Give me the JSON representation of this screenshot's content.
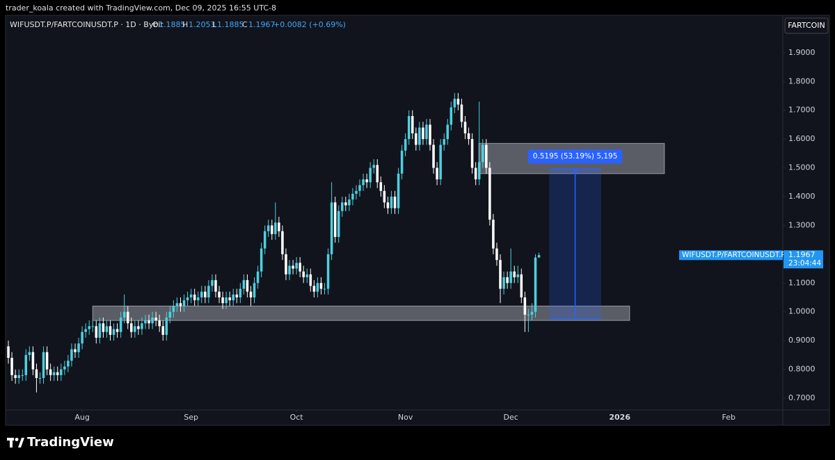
{
  "header": {
    "caption": "trader_koala created with TradingView.com, Dec 09, 2025 16:55 UTC-8"
  },
  "legend": {
    "symbol": "WIFUSDT.P/FARTCOINUSDT.P · 1D · Bybit",
    "o_label": "O",
    "h_label": "H",
    "l_label": "L",
    "c_label": "C",
    "change": "+0.0082 (+0.69%)"
  },
  "currency_button": "FARTCOIN",
  "price_label": {
    "symbol": "WIFUSDT.P/FARTCOINUSDT.P",
    "countdown": "23:04:44"
  },
  "brand": "TradingView",
  "chart_data": {
    "type": "candlestick",
    "up_color": "#4dd0e1",
    "down_color": "#ffffff",
    "open": [
      0.88,
      0.84,
      0.78,
      0.77,
      0.78,
      0.78,
      0.85,
      0.86,
      0.8,
      0.77,
      0.77,
      0.86,
      0.8,
      0.78,
      0.79,
      0.78,
      0.8,
      0.81,
      0.83,
      0.87,
      0.86,
      0.89,
      0.93,
      0.94,
      0.95,
      0.95,
      0.91,
      0.96,
      0.93,
      0.95,
      0.92,
      0.94,
      0.93,
      0.98,
      1.0,
      0.96,
      0.93,
      0.95,
      0.94,
      0.96,
      0.97,
      0.96,
      0.98,
      0.97,
      0.95,
      0.92,
      0.98,
      1.0,
      1.02,
      1.03,
      1.02,
      1.04,
      1.05,
      1.06,
      1.04,
      1.05,
      1.07,
      1.05,
      1.09,
      1.11,
      1.07,
      1.05,
      1.03,
      1.05,
      1.04,
      1.06,
      1.05,
      1.08,
      1.11,
      1.07,
      1.05,
      1.1,
      1.14,
      1.22,
      1.28,
      1.3,
      1.27,
      1.31,
      1.28,
      1.2,
      1.13,
      1.16,
      1.15,
      1.17,
      1.14,
      1.12,
      1.13,
      1.09,
      1.07,
      1.1,
      1.08,
      1.08,
      1.2,
      1.38,
      1.26,
      1.35,
      1.38,
      1.37,
      1.39,
      1.41,
      1.42,
      1.44,
      1.46,
      1.45,
      1.5,
      1.51,
      1.45,
      1.42,
      1.38,
      1.36,
      1.4,
      1.36,
      1.48,
      1.56,
      1.6,
      1.68,
      1.62,
      1.58,
      1.64,
      1.6,
      1.65,
      1.58,
      1.5,
      1.46,
      1.58,
      1.6,
      1.65,
      1.71,
      1.74,
      1.72,
      1.66,
      1.62,
      1.6,
      1.5,
      1.46,
      1.52,
      1.58,
      1.5,
      1.32,
      1.22,
      1.18,
      1.08,
      1.12,
      1.1,
      1.14,
      1.12,
      1.13,
      1.05,
      0.99,
      0.99,
      1.0,
      1.1885
    ],
    "high": [
      0.9,
      0.86,
      0.8,
      0.8,
      0.8,
      0.87,
      0.88,
      0.88,
      0.82,
      0.79,
      0.88,
      0.88,
      0.82,
      0.81,
      0.81,
      0.82,
      0.83,
      0.85,
      0.89,
      0.89,
      0.91,
      0.95,
      0.96,
      0.97,
      0.97,
      0.97,
      0.98,
      0.98,
      0.97,
      0.97,
      0.96,
      0.96,
      1.0,
      1.06,
      1.02,
      0.98,
      0.97,
      0.97,
      0.98,
      0.99,
      0.99,
      1.0,
      1.0,
      0.99,
      0.97,
      1.0,
      1.02,
      1.04,
      1.05,
      1.05,
      1.06,
      1.07,
      1.08,
      1.08,
      1.07,
      1.09,
      1.09,
      1.11,
      1.13,
      1.13,
      1.09,
      1.07,
      1.07,
      1.07,
      1.08,
      1.08,
      1.1,
      1.13,
      1.13,
      1.09,
      1.12,
      1.16,
      1.24,
      1.3,
      1.32,
      1.32,
      1.38,
      1.33,
      1.3,
      1.22,
      1.18,
      1.18,
      1.19,
      1.19,
      1.16,
      1.15,
      1.15,
      1.11,
      1.12,
      1.12,
      1.1,
      1.22,
      1.45,
      1.4,
      1.37,
      1.4,
      1.4,
      1.41,
      1.43,
      1.44,
      1.46,
      1.48,
      1.48,
      1.52,
      1.53,
      1.53,
      1.47,
      1.44,
      1.4,
      1.42,
      1.42,
      1.5,
      1.58,
      1.62,
      1.7,
      1.7,
      1.64,
      1.66,
      1.66,
      1.67,
      1.67,
      1.6,
      1.52,
      1.6,
      1.62,
      1.67,
      1.73,
      1.76,
      1.76,
      1.74,
      1.68,
      1.64,
      1.62,
      1.52,
      1.73,
      1.6,
      1.6,
      1.52,
      1.34,
      1.24,
      1.2,
      1.14,
      1.14,
      1.22,
      1.16,
      1.16,
      1.15,
      1.07,
      1.01,
      1.03,
      1.2,
      1.2053
    ],
    "low": [
      0.82,
      0.76,
      0.75,
      0.75,
      0.76,
      0.76,
      0.83,
      0.78,
      0.72,
      0.75,
      0.75,
      0.78,
      0.76,
      0.76,
      0.76,
      0.76,
      0.78,
      0.79,
      0.81,
      0.84,
      0.84,
      0.87,
      0.91,
      0.92,
      0.93,
      0.89,
      0.89,
      0.91,
      0.91,
      0.9,
      0.9,
      0.91,
      0.91,
      0.96,
      0.94,
      0.91,
      0.91,
      0.92,
      0.92,
      0.94,
      0.94,
      0.94,
      0.95,
      0.93,
      0.9,
      0.9,
      0.96,
      0.98,
      1.0,
      1.0,
      1.0,
      1.02,
      1.03,
      1.02,
      1.02,
      1.03,
      1.03,
      1.03,
      1.07,
      1.05,
      1.03,
      1.01,
      1.01,
      1.02,
      1.02,
      1.03,
      1.03,
      1.06,
      1.05,
      1.02,
      1.03,
      1.08,
      1.12,
      1.2,
      1.26,
      1.25,
      1.25,
      1.26,
      1.18,
      1.11,
      1.11,
      1.13,
      1.13,
      1.12,
      1.1,
      1.1,
      1.07,
      1.05,
      1.05,
      1.06,
      1.06,
      1.06,
      1.18,
      1.24,
      1.24,
      1.33,
      1.35,
      1.35,
      1.37,
      1.39,
      1.4,
      1.42,
      1.43,
      1.43,
      1.48,
      1.43,
      1.4,
      1.36,
      1.34,
      1.34,
      1.34,
      1.34,
      1.46,
      1.54,
      1.58,
      1.6,
      1.56,
      1.56,
      1.58,
      1.58,
      1.56,
      1.48,
      1.44,
      1.44,
      1.56,
      1.58,
      1.63,
      1.69,
      1.7,
      1.64,
      1.6,
      1.58,
      1.48,
      1.44,
      1.44,
      1.5,
      1.48,
      1.3,
      1.2,
      1.16,
      1.03,
      1.06,
      1.08,
      1.08,
      1.1,
      1.1,
      1.03,
      0.93,
      0.93,
      0.97,
      0.98,
      1.1885
    ],
    "close": [
      0.84,
      0.78,
      0.77,
      0.78,
      0.78,
      0.85,
      0.86,
      0.8,
      0.77,
      0.77,
      0.86,
      0.8,
      0.78,
      0.79,
      0.78,
      0.8,
      0.81,
      0.83,
      0.87,
      0.86,
      0.89,
      0.93,
      0.94,
      0.95,
      0.95,
      0.91,
      0.96,
      0.93,
      0.95,
      0.92,
      0.94,
      0.93,
      0.98,
      1.0,
      0.96,
      0.93,
      0.95,
      0.94,
      0.96,
      0.97,
      0.96,
      0.98,
      0.97,
      0.95,
      0.92,
      0.98,
      1.0,
      1.02,
      1.03,
      1.02,
      1.04,
      1.05,
      1.06,
      1.04,
      1.05,
      1.07,
      1.05,
      1.09,
      1.11,
      1.07,
      1.05,
      1.03,
      1.05,
      1.04,
      1.06,
      1.05,
      1.08,
      1.11,
      1.07,
      1.05,
      1.1,
      1.14,
      1.22,
      1.28,
      1.3,
      1.27,
      1.31,
      1.28,
      1.2,
      1.13,
      1.16,
      1.15,
      1.17,
      1.14,
      1.12,
      1.13,
      1.09,
      1.07,
      1.1,
      1.08,
      1.08,
      1.2,
      1.38,
      1.26,
      1.35,
      1.38,
      1.37,
      1.39,
      1.41,
      1.42,
      1.44,
      1.46,
      1.45,
      1.5,
      1.51,
      1.45,
      1.42,
      1.38,
      1.36,
      1.4,
      1.36,
      1.48,
      1.56,
      1.6,
      1.68,
      1.62,
      1.58,
      1.64,
      1.6,
      1.65,
      1.58,
      1.5,
      1.46,
      1.58,
      1.6,
      1.65,
      1.71,
      1.74,
      1.72,
      1.66,
      1.62,
      1.6,
      1.5,
      1.46,
      1.52,
      1.58,
      1.5,
      1.32,
      1.22,
      1.18,
      1.08,
      1.12,
      1.1,
      1.14,
      1.12,
      1.13,
      1.05,
      0.99,
      0.99,
      1.0,
      1.1885,
      1.1967
    ],
    "xlim": [
      -0.8,
      220.4
    ],
    "ylim": [
      0.659,
      2.03
    ],
    "xticks": [
      {
        "value": 21,
        "label": "Aug"
      },
      {
        "value": 52,
        "label": "Sep"
      },
      {
        "value": 82,
        "label": "Oct"
      },
      {
        "value": 113,
        "label": "Nov"
      },
      {
        "value": 143,
        "label": "Dec"
      },
      {
        "value": 174,
        "label": "2026"
      },
      {
        "value": 205,
        "label": "Feb"
      }
    ],
    "yticks": [
      {
        "value": 0.7,
        "label": "0.7000"
      },
      {
        "value": 0.8,
        "label": "0.8000"
      },
      {
        "value": 0.9,
        "label": "0.9000"
      },
      {
        "value": 1.0,
        "label": "1.0000"
      },
      {
        "value": 1.1,
        "label": "1.1000"
      },
      {
        "value": 1.2,
        "label": "1.2000"
      },
      {
        "value": 1.3,
        "label": "1.3000"
      },
      {
        "value": 1.4,
        "label": "1.4000"
      },
      {
        "value": 1.5,
        "label": "1.5000"
      },
      {
        "value": 1.6,
        "label": "1.6000"
      },
      {
        "value": 1.7,
        "label": "1.7000"
      },
      {
        "value": 1.8,
        "label": "1.8000"
      },
      {
        "value": 1.9,
        "label": "1.9000"
      }
    ],
    "grid": false,
    "zones": [
      {
        "top": 1.585,
        "bottom": 1.48,
        "start": 133.9,
        "end": 186.7
      },
      {
        "top": 1.02,
        "bottom": 0.97,
        "start": 24,
        "end": 176.8
      }
    ],
    "measure": {
      "from": 0.9765,
      "to": 1.496,
      "start": 153.9,
      "end": 168.7,
      "label": "0.5195 (53.19%) 5,195"
    }
  }
}
